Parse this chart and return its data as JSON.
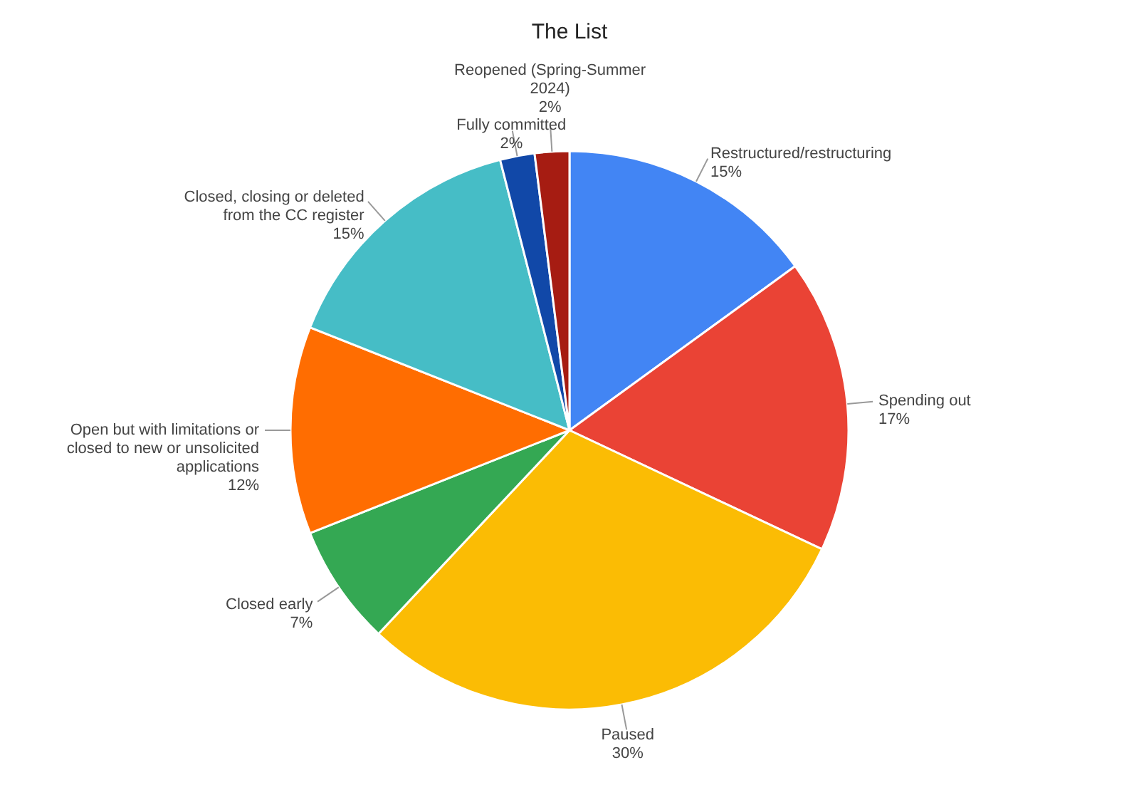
{
  "chart_data": {
    "type": "pie",
    "title": "The List",
    "categories": [
      "Restructured/restructuring",
      "Spending out",
      "Paused",
      "Closed early",
      "Open but with limitations or closed to new or unsolicited applications",
      "Closed, closing or deleted from the CC register",
      "Fully committed",
      "Reopened (Spring-Summer 2024)"
    ],
    "values": [
      15,
      17,
      30,
      7,
      12,
      15,
      2,
      2
    ],
    "value_labels": [
      "15%",
      "17%",
      "30%",
      "7%",
      "12%",
      "15%",
      "2%",
      "2%"
    ],
    "colors": [
      "#4285f4",
      "#ea4335",
      "#fbbc04",
      "#34a853",
      "#ff6d01",
      "#46bdc6",
      "#1148a8",
      "#a61c12"
    ],
    "legend": false
  }
}
